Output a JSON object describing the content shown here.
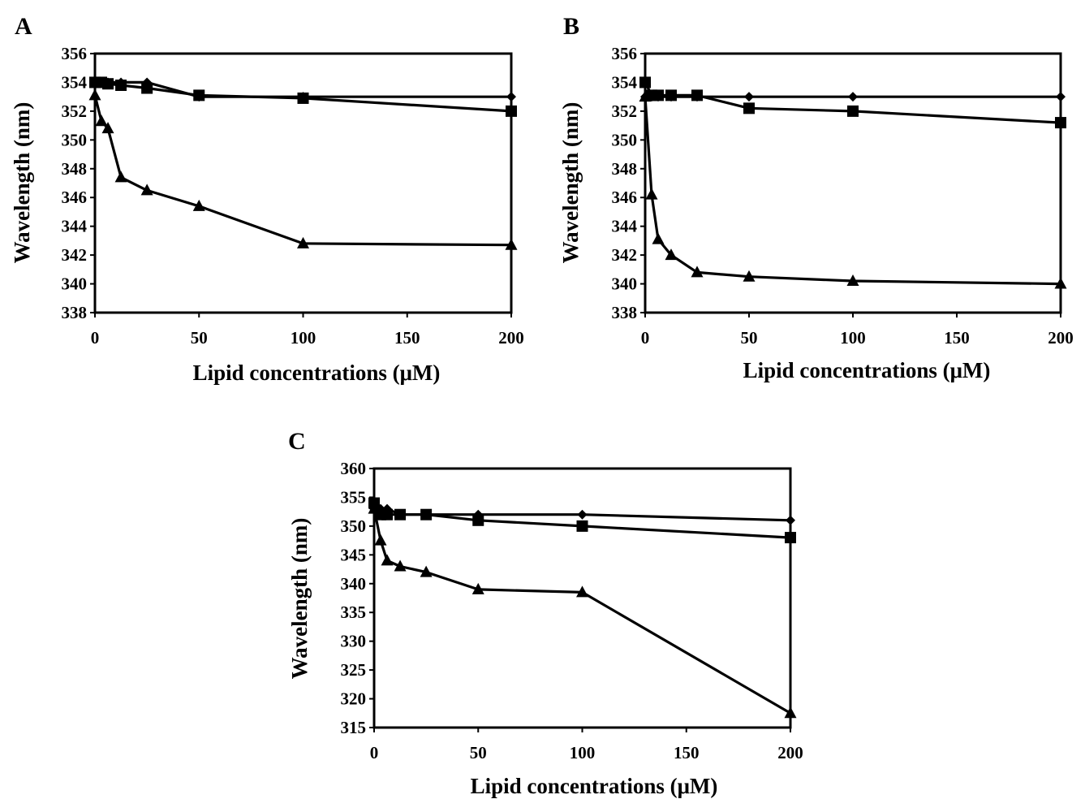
{
  "chart_data": [
    {
      "panel": "A",
      "type": "line",
      "xlabel": "Lipid concentrations (μM)",
      "ylabel": "Wavelength (nm)",
      "xlim": [
        0,
        200
      ],
      "ylim": [
        338,
        356
      ],
      "xticks": [
        0,
        50,
        100,
        150,
        200
      ],
      "yticks": [
        338,
        340,
        342,
        344,
        346,
        348,
        350,
        352,
        354,
        356
      ],
      "series": [
        {
          "marker": "diamond",
          "x": [
            0,
            3.125,
            6.25,
            12.5,
            25,
            50,
            100,
            200
          ],
          "y": [
            354,
            354,
            354,
            354,
            354,
            353,
            353,
            353
          ]
        },
        {
          "marker": "square",
          "x": [
            0,
            3.125,
            6.25,
            12.5,
            25,
            50,
            100,
            200
          ],
          "y": [
            354,
            354,
            353.9,
            353.8,
            353.6,
            353.1,
            352.9,
            352
          ]
        },
        {
          "marker": "triangle",
          "x": [
            0,
            3.125,
            6.25,
            12.5,
            25,
            50,
            100,
            200
          ],
          "y": [
            353.1,
            351.3,
            350.8,
            347.4,
            346.5,
            345.4,
            342.8,
            342.7
          ]
        }
      ]
    },
    {
      "panel": "B",
      "type": "line",
      "xlabel": "Lipid concentrations (μM)",
      "ylabel": "Wavelength (nm)",
      "xlim": [
        0,
        200
      ],
      "ylim": [
        338,
        356
      ],
      "xticks": [
        0,
        50,
        100,
        150,
        200
      ],
      "yticks": [
        338,
        340,
        342,
        344,
        346,
        348,
        350,
        352,
        354,
        356
      ],
      "series": [
        {
          "marker": "diamond",
          "x": [
            0,
            3.125,
            6.25,
            12.5,
            25,
            50,
            100,
            200
          ],
          "y": [
            353,
            353,
            353,
            353,
            353,
            353,
            353,
            353
          ]
        },
        {
          "marker": "square",
          "x": [
            0,
            3.125,
            6.25,
            12.5,
            25,
            50,
            100,
            200
          ],
          "y": [
            354,
            353.1,
            353.1,
            353.1,
            353.1,
            352.2,
            352,
            351.2
          ]
        },
        {
          "marker": "triangle",
          "x": [
            0,
            3.125,
            6.25,
            12.5,
            25,
            50,
            100,
            200
          ],
          "y": [
            353,
            346.2,
            343.1,
            342,
            340.8,
            340.5,
            340.2,
            340
          ]
        }
      ]
    },
    {
      "panel": "C",
      "type": "line",
      "xlabel": "Lipid concentrations (μM)",
      "ylabel": "Wavelength (nm)",
      "xlim": [
        0,
        200
      ],
      "ylim": [
        315,
        360
      ],
      "xticks": [
        0,
        50,
        100,
        150,
        200
      ],
      "yticks": [
        315,
        320,
        325,
        330,
        335,
        340,
        345,
        350,
        355,
        360
      ],
      "series": [
        {
          "marker": "diamond",
          "x": [
            0,
            3.125,
            6.25,
            12.5,
            25,
            50,
            100,
            200
          ],
          "y": [
            353,
            353,
            353,
            352,
            352,
            352,
            352,
            351
          ]
        },
        {
          "marker": "square",
          "x": [
            0,
            3.125,
            6.25,
            12.5,
            25,
            50,
            100,
            200
          ],
          "y": [
            354,
            352,
            352,
            352,
            352,
            351,
            350,
            348
          ]
        },
        {
          "marker": "triangle",
          "x": [
            0,
            3.125,
            6.25,
            12.5,
            25,
            50,
            100,
            200
          ],
          "y": [
            353,
            347.5,
            344,
            343,
            342,
            339,
            338.5,
            317.5
          ]
        }
      ]
    }
  ]
}
